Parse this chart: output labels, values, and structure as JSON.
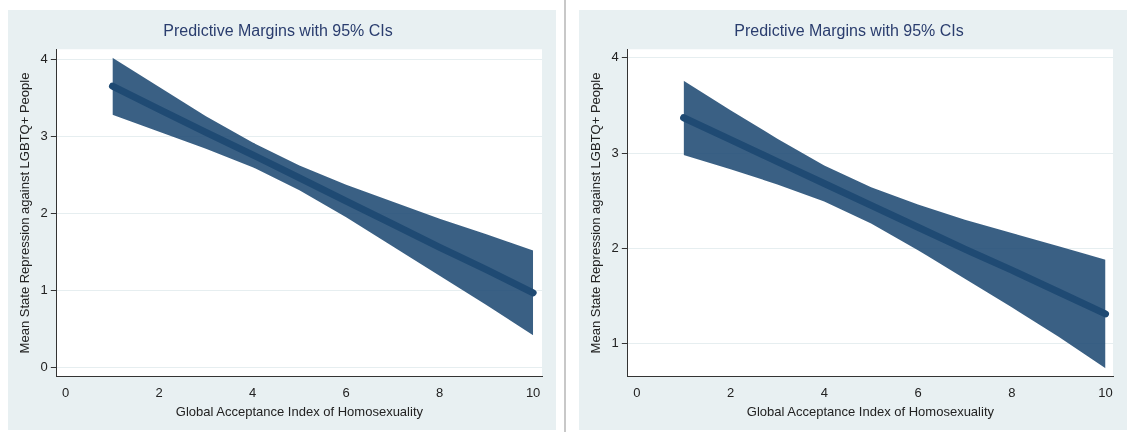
{
  "chart_data": [
    {
      "type": "line",
      "title": "Predictive Margins with 95% CIs",
      "xlabel": "Global Acceptance Index of Homosexuality",
      "ylabel": "Mean State Repression against LGBTQ+ People",
      "x": [
        1,
        2,
        3,
        4,
        5,
        6,
        7,
        8,
        9,
        10
      ],
      "series": [
        {
          "color": "#1f4a73",
          "values": [
            3.65,
            3.35,
            3.05,
            2.76,
            2.46,
            2.16,
            1.86,
            1.56,
            1.27,
            0.97
          ],
          "upper": [
            4.02,
            3.64,
            3.26,
            2.92,
            2.62,
            2.37,
            2.15,
            1.93,
            1.73,
            1.52
          ],
          "lower": [
            3.28,
            3.06,
            2.84,
            2.6,
            2.3,
            1.95,
            1.57,
            1.19,
            0.81,
            0.42
          ]
        }
      ],
      "xlim": [
        -0.19,
        10.19
      ],
      "xticks": [
        0,
        2,
        4,
        6,
        8,
        10
      ],
      "ylim": [
        -0.12,
        4.13
      ],
      "yticks": [
        0,
        1,
        2,
        3,
        4
      ],
      "grid": "y",
      "legend": false
    },
    {
      "type": "line",
      "title": "Predictive Margins with 95% CIs",
      "xlabel": "Global Acceptance Index of Homosexuality",
      "ylabel": "Mean State Repression against LGBTQ+ People",
      "x": [
        1,
        2,
        3,
        4,
        5,
        6,
        7,
        8,
        9,
        10
      ],
      "series": [
        {
          "color": "#1f4a73",
          "values": [
            3.37,
            3.14,
            2.91,
            2.68,
            2.45,
            2.22,
            1.99,
            1.77,
            1.54,
            1.31
          ],
          "upper": [
            3.76,
            3.45,
            3.15,
            2.87,
            2.64,
            2.46,
            2.3,
            2.16,
            2.02,
            1.88
          ],
          "lower": [
            2.98,
            2.83,
            2.67,
            2.49,
            2.26,
            1.98,
            1.68,
            1.38,
            1.07,
            0.74
          ]
        }
      ],
      "xlim": [
        -0.19,
        10.16
      ],
      "xticks": [
        0,
        2,
        4,
        6,
        8,
        10
      ],
      "ylim": [
        0.65,
        4.09
      ],
      "yticks": [
        1,
        2,
        3,
        4
      ],
      "grid": "y",
      "legend": false
    }
  ]
}
